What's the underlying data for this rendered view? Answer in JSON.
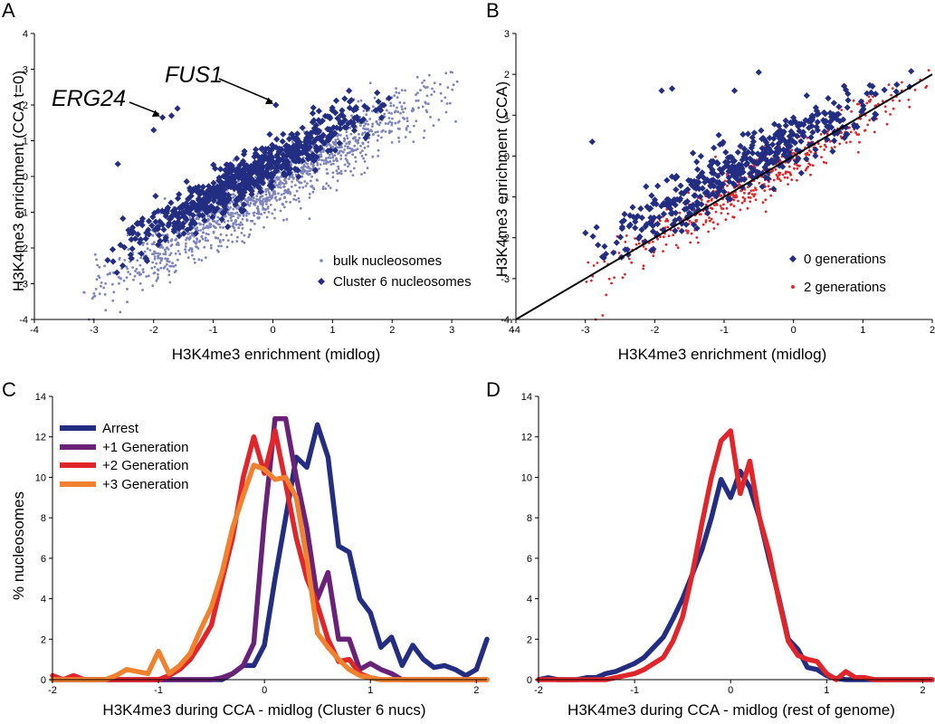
{
  "colors": {
    "navy": "#232E82",
    "bulk": "#7E84BC",
    "red": "#E0262B",
    "purple": "#6A2278",
    "orange": "#F0812E",
    "axis": "#000000"
  },
  "chart_data": [
    {
      "panel": "A",
      "type": "scatter",
      "xlabel": "H3K4me3 enrichment (midlog)",
      "ylabel": "H3K4me3 enrichment (CCA t=0)",
      "xlim": [
        -4,
        4
      ],
      "ylim": [
        -4,
        4
      ],
      "xticks": [
        "-4",
        "-3",
        "-2",
        "-1",
        "0",
        "1",
        "2",
        "3",
        "4"
      ],
      "yticks": [
        "-4",
        "-3",
        "-2",
        "-1",
        "0",
        "1",
        "2",
        "3",
        "4"
      ],
      "legend": {
        "placement": "lower-right",
        "entries": [
          "bulk nucleosomes",
          "Cluster 6 nucleosomes"
        ]
      },
      "annotations": [
        {
          "text": "FUS1",
          "x": 0.05,
          "y": 2.0
        },
        {
          "text": "ERG24",
          "x": -1.85,
          "y": 1.65
        }
      ],
      "series": [
        {
          "name": "bulk nucleosomes",
          "marker": "dot",
          "color": "#7E84BC",
          "trend": {
            "slope": 0.95,
            "intercept": -0.3
          },
          "spread": 0.42,
          "xrange": [
            -3.2,
            3.1
          ],
          "count": 1400
        },
        {
          "name": "Cluster 6 nucleosomes",
          "marker": "diamond",
          "color": "#232E82",
          "trend": {
            "slope": 0.92,
            "intercept": 0.35
          },
          "spread": 0.32,
          "xrange": [
            -2.8,
            2.0
          ],
          "count": 700,
          "points": [
            {
              "x": -1.85,
              "y": 1.65
            },
            {
              "x": -1.7,
              "y": 1.7
            },
            {
              "x": 0.05,
              "y": 2.0
            },
            {
              "x": -2.0,
              "y": 1.3
            },
            {
              "x": -2.6,
              "y": 0.35
            },
            {
              "x": -1.6,
              "y": 1.9
            }
          ]
        }
      ]
    },
    {
      "panel": "B",
      "type": "scatter",
      "xlabel": "H3K4me3 enrichment (midlog)",
      "ylabel": "H3K4me3 enrichment (CCA)",
      "xlim": [
        -4,
        2
      ],
      "ylim": [
        -4,
        3
      ],
      "xticks": [
        "-4",
        "-3",
        "-2",
        "-1",
        "0",
        "1",
        "2"
      ],
      "yticks": [
        "-4",
        "-3",
        "-2",
        "-1",
        "0",
        "1",
        "2",
        "3"
      ],
      "legend": {
        "placement": "lower-right",
        "entries": [
          "0 generations",
          "2 generations"
        ]
      },
      "reference_line": {
        "x": [
          -4,
          2
        ],
        "y": [
          -4,
          2
        ]
      },
      "series": [
        {
          "name": "0 generations",
          "marker": "diamond",
          "color": "#232E82",
          "trend": {
            "slope": 0.92,
            "intercept": 0.38
          },
          "spread": 0.34,
          "xrange": [
            -3.0,
            1.7
          ],
          "count": 480,
          "points": [
            {
              "x": -1.9,
              "y": 1.6
            },
            {
              "x": -1.75,
              "y": 1.65
            },
            {
              "x": -0.85,
              "y": 1.6
            },
            {
              "x": -2.9,
              "y": 0.35
            },
            {
              "x": -0.5,
              "y": 2.05
            }
          ]
        },
        {
          "name": "2 generations",
          "marker": "dot",
          "color": "#E0262B",
          "trend": {
            "slope": 0.98,
            "intercept": -0.05
          },
          "spread": 0.3,
          "xrange": [
            -3.0,
            2.0
          ],
          "count": 520,
          "points": [
            {
              "x": -2.85,
              "y": -4.0
            },
            {
              "x": -2.7,
              "y": -3.4
            },
            {
              "x": -2.75,
              "y": -3.9
            },
            {
              "x": 1.95,
              "y": 2.1
            }
          ]
        }
      ]
    },
    {
      "panel": "C",
      "type": "line",
      "xlabel": "H3K4me3 during CCA - midlog (Cluster 6 nucs)",
      "ylabel": "% nucleosomes",
      "xlim": [
        -2,
        2.1
      ],
      "ylim": [
        0,
        14
      ],
      "xticks": [
        "-2",
        "-1",
        "0",
        "1",
        "2"
      ],
      "yticks": [
        "0",
        "2",
        "4",
        "6",
        "8",
        "10",
        "12",
        "14"
      ],
      "legend": {
        "placement": "top-left",
        "entries": [
          "Arrest",
          "+1 Generation",
          "+2 Generation",
          "+3 Generation"
        ]
      },
      "x": [
        -2.0,
        -1.9,
        -1.8,
        -1.7,
        -1.6,
        -1.5,
        -1.4,
        -1.3,
        -1.2,
        -1.1,
        -1.0,
        -0.9,
        -0.8,
        -0.7,
        -0.6,
        -0.5,
        -0.4,
        -0.3,
        -0.2,
        -0.1,
        0.0,
        0.1,
        0.2,
        0.3,
        0.4,
        0.5,
        0.6,
        0.7,
        0.8,
        0.9,
        1.0,
        1.1,
        1.2,
        1.3,
        1.4,
        1.5,
        1.6,
        1.7,
        1.8,
        1.9,
        2.0,
        2.1
      ],
      "series": [
        {
          "name": "Arrest",
          "color": "#232E82",
          "values": [
            0,
            0,
            0,
            0,
            0,
            0,
            0,
            0,
            0,
            0,
            0,
            0,
            0,
            0,
            0,
            0,
            0,
            0.3,
            0.7,
            0.7,
            1.7,
            5.0,
            8.0,
            11.0,
            10.5,
            12.6,
            11.0,
            6.6,
            6.3,
            4.0,
            3.3,
            1.6,
            2.1,
            0.7,
            1.7,
            1.0,
            0.6,
            0.7,
            0.5,
            0.2,
            0.5,
            2.0
          ]
        },
        {
          "name": "+1 Generation",
          "color": "#6A2278",
          "values": [
            0,
            0,
            0,
            0,
            0,
            0,
            0,
            0,
            0,
            0,
            0,
            0,
            0,
            0,
            0,
            0,
            0.1,
            0.3,
            0.7,
            1.8,
            7.9,
            12.9,
            12.9,
            10.0,
            7.5,
            4.0,
            5.3,
            2.0,
            2.0,
            0.5,
            0.8,
            0.5,
            0.3,
            0,
            0,
            0,
            0,
            0,
            0,
            0,
            0,
            0
          ]
        },
        {
          "name": "+2 Generation",
          "color": "#E0262B",
          "values": [
            0.2,
            0,
            0.2,
            0,
            0,
            0,
            0,
            0,
            0,
            0,
            0,
            0.2,
            0.5,
            1.0,
            1.8,
            2.7,
            4.9,
            7.0,
            10.0,
            12.0,
            10.2,
            12.3,
            9.7,
            7.0,
            5.0,
            3.7,
            2.0,
            0.9,
            1.0,
            0.3,
            0.1,
            0,
            0,
            0,
            0,
            0,
            0,
            0,
            0,
            0,
            0,
            0
          ]
        },
        {
          "name": "+3 Generation",
          "color": "#F0812E",
          "values": [
            0,
            0,
            0,
            0,
            0,
            0,
            0.2,
            0.5,
            0.4,
            0.3,
            1.4,
            0.3,
            0.7,
            1.3,
            2.5,
            3.6,
            5.3,
            7.5,
            9.1,
            10.6,
            10.4,
            9.9,
            10.0,
            9.0,
            6.0,
            2.3,
            1.6,
            1.0,
            0.5,
            0.2,
            0.1,
            0,
            0,
            0,
            0,
            0,
            0,
            0,
            0,
            0,
            0,
            0
          ]
        }
      ]
    },
    {
      "panel": "D",
      "type": "line",
      "xlabel": "H3K4me3 during CCA - midlog (rest of genome)",
      "ylabel": "",
      "xlim": [
        -2,
        2.1
      ],
      "ylim": [
        0,
        14
      ],
      "xticks": [
        "-2",
        "-1",
        "0",
        "1",
        "2"
      ],
      "yticks": [
        "0",
        "2",
        "4",
        "6",
        "8",
        "10",
        "12",
        "14"
      ],
      "x": [
        -2.0,
        -1.9,
        -1.8,
        -1.7,
        -1.6,
        -1.5,
        -1.4,
        -1.3,
        -1.2,
        -1.1,
        -1.0,
        -0.9,
        -0.8,
        -0.7,
        -0.6,
        -0.5,
        -0.4,
        -0.3,
        -0.2,
        -0.1,
        0.0,
        0.1,
        0.2,
        0.3,
        0.4,
        0.5,
        0.6,
        0.7,
        0.8,
        0.9,
        1.0,
        1.1,
        1.2,
        1.3,
        1.4,
        1.5,
        1.6,
        1.7,
        1.8,
        1.9,
        2.0,
        2.1
      ],
      "series": [
        {
          "name": "",
          "color": "#232E82",
          "values": [
            0,
            0.1,
            0,
            0,
            0,
            0.1,
            0.1,
            0.3,
            0.4,
            0.6,
            0.8,
            1.1,
            1.6,
            2.1,
            3.0,
            4.0,
            5.2,
            6.4,
            8.0,
            9.9,
            9.0,
            10.3,
            9.5,
            8.0,
            6.0,
            4.1,
            2.0,
            1.5,
            0.6,
            0.5,
            0.2,
            0.05,
            0,
            0,
            0,
            0,
            0,
            0,
            0,
            0,
            0,
            0
          ]
        },
        {
          "name": "",
          "color": "#E0262B",
          "values": [
            0,
            0,
            0,
            0,
            0,
            0,
            0,
            0,
            0.1,
            0.2,
            0.3,
            0.5,
            0.8,
            1.1,
            1.9,
            3.1,
            5.2,
            7.7,
            10.0,
            11.8,
            12.3,
            9.2,
            10.8,
            8.0,
            6.3,
            4.0,
            1.9,
            1.2,
            1.0,
            0.9,
            0.3,
            0,
            0.4,
            0.1,
            0.1,
            0,
            0,
            0,
            0,
            0,
            0,
            0
          ]
        }
      ]
    }
  ]
}
